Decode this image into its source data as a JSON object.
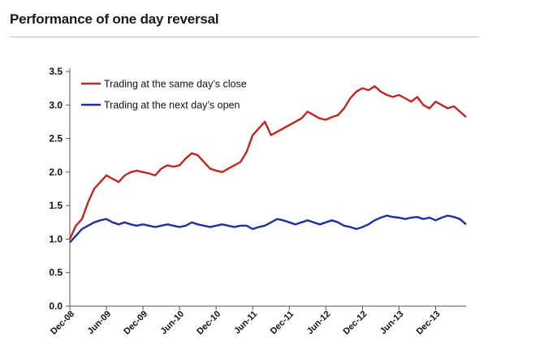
{
  "title": "Performance of one day reversal",
  "chart_data": {
    "type": "line",
    "title": "Performance of one day reversal",
    "xlabel": "",
    "ylabel": "",
    "ylim": [
      0,
      3.5
    ],
    "yticks": [
      "0.0",
      "0.5",
      "1.0",
      "1.5",
      "2.0",
      "2.5",
      "3.0",
      "3.5"
    ],
    "xticks": [
      "Dec-08",
      "Jun-09",
      "Dec-09",
      "Jun-10",
      "Dec-10",
      "Jun-11",
      "Dec-11",
      "Jun-12",
      "Dec-12",
      "Jun-13",
      "Dec-13"
    ],
    "x_range": [
      "2008-12",
      "2014-05"
    ],
    "grid": false,
    "legend_position": "top-left",
    "series": [
      {
        "name": "Trading at the same day’s close",
        "color": "#c0261d",
        "x": [
          "2008-12",
          "2009-01",
          "2009-02",
          "2009-03",
          "2009-04",
          "2009-05",
          "2009-06",
          "2009-07",
          "2009-08",
          "2009-09",
          "2009-10",
          "2009-11",
          "2009-12",
          "2010-01",
          "2010-02",
          "2010-03",
          "2010-04",
          "2010-05",
          "2010-06",
          "2010-07",
          "2010-08",
          "2010-09",
          "2010-10",
          "2010-11",
          "2010-12",
          "2011-01",
          "2011-02",
          "2011-03",
          "2011-04",
          "2011-05",
          "2011-06",
          "2011-07",
          "2011-08",
          "2011-09",
          "2011-10",
          "2011-11",
          "2011-12",
          "2012-01",
          "2012-02",
          "2012-03",
          "2012-04",
          "2012-05",
          "2012-06",
          "2012-07",
          "2012-08",
          "2012-09",
          "2012-10",
          "2012-11",
          "2012-12",
          "2013-01",
          "2013-02",
          "2013-03",
          "2013-04",
          "2013-05",
          "2013-06",
          "2013-07",
          "2013-08",
          "2013-09",
          "2013-10",
          "2013-11",
          "2013-12",
          "2014-01",
          "2014-02",
          "2014-03",
          "2014-04",
          "2014-05"
        ],
        "y": [
          1.0,
          1.2,
          1.3,
          1.55,
          1.75,
          1.85,
          1.95,
          1.9,
          1.85,
          1.95,
          2.0,
          2.02,
          2.0,
          1.98,
          1.95,
          2.05,
          2.1,
          2.08,
          2.1,
          2.2,
          2.28,
          2.25,
          2.15,
          2.05,
          2.02,
          2.0,
          2.05,
          2.1,
          2.15,
          2.3,
          2.55,
          2.65,
          2.75,
          2.55,
          2.6,
          2.65,
          2.7,
          2.75,
          2.8,
          2.9,
          2.85,
          2.8,
          2.78,
          2.82,
          2.85,
          2.95,
          3.1,
          3.2,
          3.25,
          3.22,
          3.28,
          3.2,
          3.15,
          3.12,
          3.15,
          3.1,
          3.05,
          3.12,
          3.0,
          2.95,
          3.05,
          3.0,
          2.95,
          2.98,
          2.9,
          2.82
        ]
      },
      {
        "name": "Trading at the next day’s open",
        "color": "#1f2fa3",
        "x": [
          "2008-12",
          "2009-01",
          "2009-02",
          "2009-03",
          "2009-04",
          "2009-05",
          "2009-06",
          "2009-07",
          "2009-08",
          "2009-09",
          "2009-10",
          "2009-11",
          "2009-12",
          "2010-01",
          "2010-02",
          "2010-03",
          "2010-04",
          "2010-05",
          "2010-06",
          "2010-07",
          "2010-08",
          "2010-09",
          "2010-10",
          "2010-11",
          "2010-12",
          "2011-01",
          "2011-02",
          "2011-03",
          "2011-04",
          "2011-05",
          "2011-06",
          "2011-07",
          "2011-08",
          "2011-09",
          "2011-10",
          "2011-11",
          "2011-12",
          "2012-01",
          "2012-02",
          "2012-03",
          "2012-04",
          "2012-05",
          "2012-06",
          "2012-07",
          "2012-08",
          "2012-09",
          "2012-10",
          "2012-11",
          "2012-12",
          "2013-01",
          "2013-02",
          "2013-03",
          "2013-04",
          "2013-05",
          "2013-06",
          "2013-07",
          "2013-08",
          "2013-09",
          "2013-10",
          "2013-11",
          "2013-12",
          "2014-01",
          "2014-02",
          "2014-03",
          "2014-04",
          "2014-05"
        ],
        "y": [
          0.95,
          1.05,
          1.15,
          1.2,
          1.25,
          1.28,
          1.3,
          1.25,
          1.22,
          1.25,
          1.22,
          1.2,
          1.22,
          1.2,
          1.18,
          1.2,
          1.22,
          1.2,
          1.18,
          1.2,
          1.25,
          1.22,
          1.2,
          1.18,
          1.2,
          1.22,
          1.2,
          1.18,
          1.2,
          1.2,
          1.15,
          1.18,
          1.2,
          1.25,
          1.3,
          1.28,
          1.25,
          1.22,
          1.25,
          1.28,
          1.25,
          1.22,
          1.25,
          1.28,
          1.25,
          1.2,
          1.18,
          1.15,
          1.18,
          1.22,
          1.28,
          1.32,
          1.35,
          1.33,
          1.32,
          1.3,
          1.32,
          1.33,
          1.3,
          1.32,
          1.28,
          1.32,
          1.35,
          1.33,
          1.3,
          1.22
        ]
      }
    ]
  }
}
